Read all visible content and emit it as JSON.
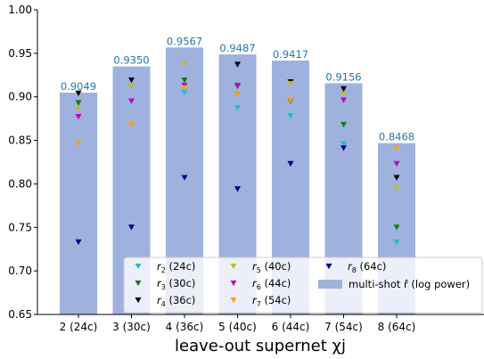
{
  "chart_data": {
    "type": "bar",
    "xlabel": "leave-out supernet χj",
    "ylabel": "",
    "ylim": [
      0.65,
      1.0
    ],
    "yticks": [
      "0.65",
      "0.70",
      "0.75",
      "0.80",
      "0.85",
      "0.90",
      "0.95",
      "1.00"
    ],
    "yticks_values": [
      0.65,
      0.7,
      0.75,
      0.8,
      0.85,
      0.9,
      0.95,
      1.0
    ],
    "categories": [
      "2 (24c)",
      "3 (30c)",
      "4 (36c)",
      "5 (40c)",
      "6 (44c)",
      "7 (54c)",
      "8 (64c)"
    ],
    "bar_series": {
      "name": "multi-shot r̂ (log power)",
      "values": [
        0.9049,
        0.935,
        0.9567,
        0.9487,
        0.9417,
        0.9156,
        0.8468
      ],
      "labels": [
        "0.9049",
        "0.9350",
        "0.9567",
        "0.9487",
        "0.9417",
        "0.9156",
        "0.8468"
      ],
      "color": "#9fb1dd"
    },
    "marker_series": [
      {
        "name": "r2 (24c)",
        "sub": "2",
        "suffix": " (24c)",
        "color": "#17becf",
        "values": [
          null,
          null,
          0.905,
          0.887,
          0.878,
          0.846,
          0.733
        ]
      },
      {
        "name": "r3 (30c)",
        "sub": "3",
        "suffix": " (30c)",
        "color": "#0f7d0f",
        "values": [
          0.893,
          null,
          0.919,
          0.912,
          0.895,
          0.868,
          0.75
        ]
      },
      {
        "name": "r4 (36c)",
        "sub": "4",
        "suffix": " (36c)",
        "color": "#000000",
        "values": [
          0.904,
          0.919,
          null,
          0.937,
          0.917,
          0.909,
          0.807
        ]
      },
      {
        "name": "r5 (40c)",
        "sub": "5",
        "suffix": " (40c)",
        "color": "#bcbd22",
        "values": [
          0.886,
          0.912,
          0.938,
          null,
          0.915,
          0.903,
          0.795
        ]
      },
      {
        "name": "r6 (44c)",
        "sub": "6",
        "suffix": " (44c)",
        "color": "#c400c4",
        "values": [
          0.877,
          0.895,
          0.913,
          0.913,
          null,
          0.896,
          0.823
        ]
      },
      {
        "name": "r7 (54c)",
        "sub": "7",
        "suffix": " (54c)",
        "color": "#ff9f0f",
        "values": [
          0.846,
          0.868,
          0.91,
          0.903,
          0.896,
          null,
          0.841
        ]
      },
      {
        "name": "r8 (64c)",
        "sub": "8",
        "suffix": " (64c)",
        "color": "#00008b",
        "values": [
          0.733,
          0.75,
          0.807,
          0.794,
          0.823,
          0.841,
          null
        ]
      }
    ],
    "legend_position": "lower-right",
    "grid": false
  }
}
